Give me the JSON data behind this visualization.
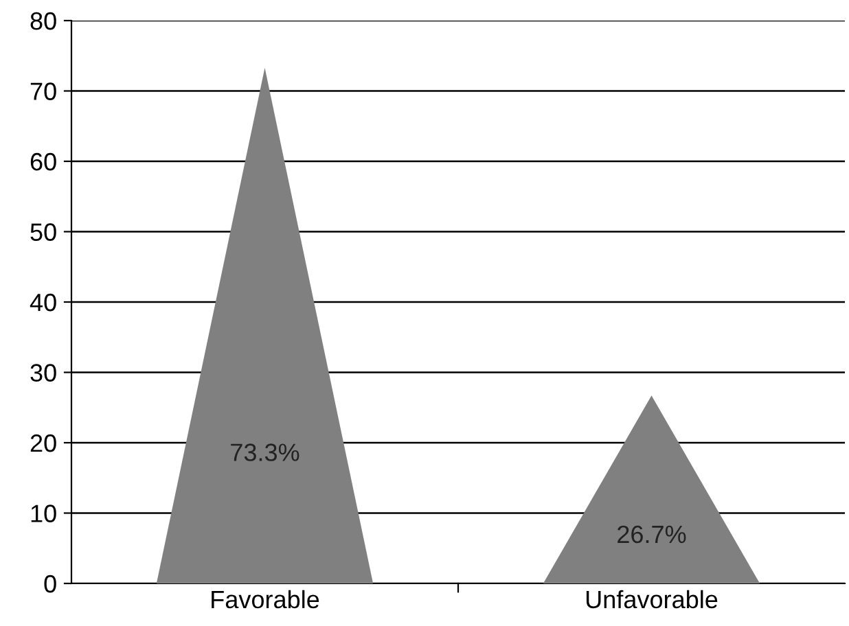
{
  "chart_data": {
    "type": "bar",
    "categories": [
      "Favorable",
      "Unfavorable"
    ],
    "values": [
      73.3,
      26.7
    ],
    "value_labels": [
      "73.3%",
      "26.7%"
    ],
    "color": "#808080",
    "ylim": [
      0,
      80
    ],
    "yticks": [
      0,
      10,
      20,
      30,
      40,
      50,
      60,
      70,
      80
    ],
    "grid": "y"
  }
}
